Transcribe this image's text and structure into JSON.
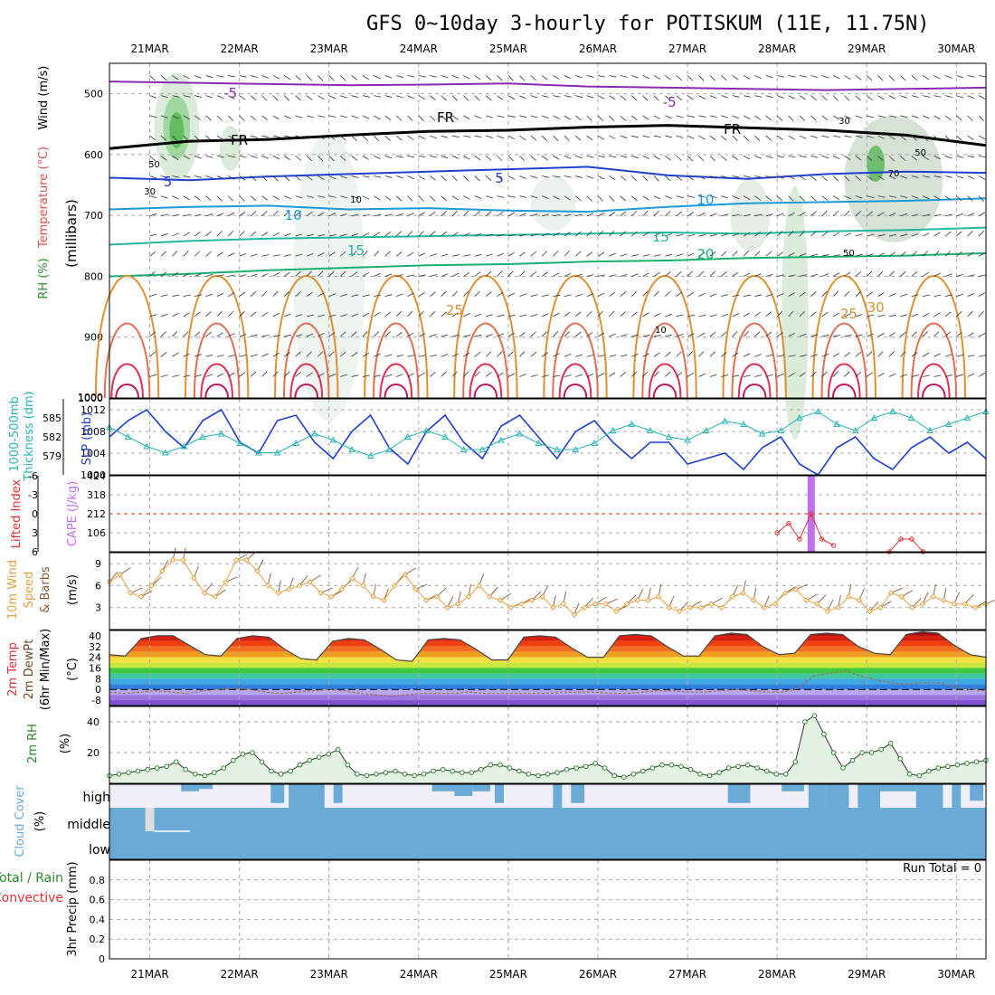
{
  "title": "GFS 0~10day 3-hourly for POTISKUM (11E, 11.75N)",
  "dates": [
    "21MAR",
    "22MAR",
    "23MAR",
    "24MAR",
    "25MAR",
    "26MAR",
    "27MAR",
    "28MAR",
    "29MAR",
    "30MAR"
  ],
  "run_total": "Run Total = 0",
  "colors": {
    "slp": "#1f3fd0",
    "thick": "#2ab5b5",
    "li": "#e03030",
    "cape": "#c070f0",
    "wind10": "#e8a040",
    "rh": "#2a8a2a",
    "cloud": "#6aaad6",
    "purple": "#8a2ab0",
    "fr": "#000000"
  },
  "chart_data": [
    {
      "type": "contour",
      "panel": "upper-air",
      "ylabel_parts": [
        "Wind (m/s)",
        "Temperature (°C)",
        "RH (%)",
        "(millibars)"
      ],
      "ylim": [
        1000,
        450
      ],
      "yticks": [
        500,
        600,
        700,
        800,
        900,
        1000
      ],
      "isotherm_labels": [
        "-5",
        "-5",
        "FR",
        "FR",
        "FR",
        "5",
        "5",
        "10",
        "10",
        "15",
        "15",
        "20",
        "25",
        "25",
        "30"
      ],
      "rh_labels": [
        "50",
        "30",
        "50",
        "70",
        "50",
        "10",
        "10",
        "30"
      ],
      "isotherms": [
        {
          "label": "-5",
          "p": [
            480,
            482,
            484,
            486,
            485,
            483,
            488,
            490,
            492,
            494,
            492,
            490
          ]
        },
        {
          "label": "FR",
          "p": [
            590,
            578,
            575,
            568,
            562,
            560,
            555,
            552,
            556,
            560,
            568,
            585
          ]
        },
        {
          "label": "5",
          "p": [
            638,
            642,
            636,
            632,
            628,
            624,
            620,
            634,
            640,
            632,
            628,
            630
          ]
        },
        {
          "label": "10",
          "p": [
            690,
            686,
            684,
            690,
            688,
            692,
            694,
            686,
            680,
            678,
            676,
            672
          ]
        },
        {
          "label": "15",
          "p": [
            748,
            742,
            738,
            736,
            734,
            732,
            730,
            728,
            730,
            726,
            724,
            720
          ]
        },
        {
          "label": "20",
          "p": [
            800,
            796,
            790,
            786,
            782,
            780,
            776,
            774,
            770,
            768,
            766,
            762
          ]
        }
      ]
    },
    {
      "type": "line",
      "panel": "slp-thickness",
      "ylabel_left": "1000-500mb Thickness (dm)",
      "ylabel_right": "SLP (mb)",
      "yticks_left": [
        "585",
        "582",
        "579"
      ],
      "yticks_right": [
        "1012",
        "1008",
        "1004",
        "1000"
      ],
      "ylim_slp": [
        1000,
        1014
      ],
      "series": [
        {
          "name": "SLP (mb)",
          "values": [
            1007,
            1010,
            1012,
            1008,
            1005,
            1010,
            1012,
            1006,
            1004,
            1010,
            1011,
            1006,
            1003,
            1008,
            1011,
            1005,
            1002,
            1008,
            1011,
            1006,
            1003,
            1009,
            1011,
            1007,
            1003,
            1008,
            1010,
            1006,
            1003,
            1006,
            1006,
            1002,
            1003,
            1004,
            1001,
            1005,
            1007,
            1002,
            1000,
            1005,
            1007,
            1003,
            1001,
            1005,
            1007,
            1004,
            1006,
            1003
          ]
        },
        {
          "name": "1000-500mb Thickness (dm)",
          "values": [
            583.5,
            582,
            580.5,
            579.5,
            580.5,
            582,
            582.5,
            581,
            579.5,
            579.5,
            581,
            582.5,
            581.5,
            580,
            579,
            580,
            582,
            583,
            582,
            580,
            580,
            581.5,
            582.5,
            581,
            580,
            580,
            581,
            583,
            584,
            583,
            582,
            581.5,
            583,
            584.5,
            584,
            582.5,
            583,
            585,
            586,
            584,
            583,
            585,
            586,
            585,
            583,
            584,
            585,
            586
          ]
        }
      ]
    },
    {
      "type": "line",
      "panel": "lifted-index-cape",
      "ylabel_left": "Lifted Index",
      "ylabel_right": "CAPE (J/kg)",
      "yticks_left": [
        "-6",
        "-3",
        "0",
        "3",
        "6"
      ],
      "yticks_right": [
        "424",
        "318",
        "212",
        "106"
      ],
      "ylim_li": [
        6,
        -6
      ],
      "series": [
        {
          "name": "Lifted Index",
          "points": [
            [
              28.0,
              3
            ],
            [
              28.13,
              1.5
            ],
            [
              28.25,
              4
            ],
            [
              28.38,
              0
            ],
            [
              28.5,
              4
            ],
            [
              28.63,
              5
            ],
            [
              29.25,
              6
            ],
            [
              29.38,
              4
            ],
            [
              29.5,
              4
            ],
            [
              29.63,
              6
            ]
          ]
        },
        {
          "name": "CAPE (J/kg)",
          "points": [
            [
              28.38,
              424
            ]
          ]
        }
      ]
    },
    {
      "type": "line",
      "panel": "wind10m",
      "ylabel": "10m Wind Speed & Barbs (m/s)",
      "yticks": [
        "9",
        "6",
        "3"
      ],
      "ylim": [
        0,
        10.5
      ],
      "series": [
        {
          "name": "10m Wind Speed",
          "values": [
            6.5,
            7.5,
            5,
            4.5,
            6,
            8,
            9.5,
            9.5,
            7,
            5,
            4.5,
            6.5,
            9.5,
            9.5,
            8,
            6,
            5,
            5.5,
            6,
            6.5,
            5,
            4.5,
            5.5,
            7,
            6,
            4.5,
            4,
            6,
            7.5,
            5.5,
            4,
            4.5,
            3,
            3.5,
            4.5,
            6,
            4.5,
            4,
            3,
            3.5,
            4,
            4.5,
            3,
            3.5,
            2,
            3,
            3.5,
            3.5,
            2.5,
            3.5,
            4,
            4,
            4.5,
            3,
            2.5,
            3,
            3,
            3.5,
            3,
            4.5,
            5,
            4,
            3,
            3.5,
            5,
            5.5,
            4,
            3.5,
            2.5,
            3,
            4.5,
            4,
            2.5,
            3,
            5,
            4.5,
            3,
            3.5,
            4.5,
            4,
            3.5,
            3.5,
            3,
            3.5
          ]
        }
      ]
    },
    {
      "type": "area",
      "panel": "temperature",
      "ylabel": "2m Temp 2m DewPt (6hr Min/Max) (°C)",
      "yticks": [
        "40",
        "32",
        "24",
        "16",
        "8",
        "0",
        "-8"
      ],
      "ylim": [
        -12,
        44
      ],
      "series": [
        {
          "name": "2m Temp",
          "values": [
            26,
            25,
            38,
            40,
            40,
            33,
            26,
            25,
            38,
            40,
            39,
            30,
            23,
            22,
            36,
            38,
            37,
            30,
            22,
            21,
            37,
            38,
            37,
            30,
            22,
            22,
            39,
            40,
            39,
            31,
            24,
            24,
            40,
            41,
            40,
            32,
            25,
            25,
            40,
            42,
            41,
            32,
            26,
            27,
            41,
            42,
            41,
            32,
            27,
            26,
            41,
            43,
            42,
            33,
            26,
            24
          ]
        },
        {
          "name": "2m DewPt",
          "values": [
            -2,
            -3,
            -2,
            -1,
            -2,
            -3,
            -1,
            0,
            1,
            0,
            -2,
            -3,
            -2,
            -1,
            0,
            -1,
            -3,
            -4,
            -5,
            -4,
            -3,
            -3,
            -3,
            -2,
            -3,
            -3,
            -3,
            -3,
            -3,
            -2,
            -2,
            -2,
            -3,
            -3,
            -2,
            -1,
            -1,
            -2,
            -2,
            -1,
            0,
            -1,
            -2,
            -2,
            1,
            10,
            12,
            14,
            10,
            7,
            5,
            4,
            5,
            5,
            2,
            0,
            -1
          ]
        }
      ]
    },
    {
      "type": "area",
      "panel": "rh2m",
      "ylabel": "2m RH (%)",
      "yticks": [
        "40",
        "20"
      ],
      "ylim": [
        0,
        50
      ],
      "series": [
        {
          "name": "2m RH",
          "values": [
            5,
            6,
            7,
            8,
            9,
            10,
            11,
            14,
            9,
            6,
            5,
            7,
            10,
            15,
            19,
            20,
            14,
            8,
            6,
            8,
            12,
            15,
            17,
            19,
            22,
            12,
            6,
            5,
            6,
            7,
            8,
            6,
            5,
            6,
            8,
            9,
            8,
            7,
            7,
            9,
            12,
            12,
            10,
            8,
            6,
            5,
            6,
            7,
            9,
            10,
            11,
            13,
            10,
            5,
            4,
            6,
            8,
            10,
            12,
            12,
            11,
            9,
            6,
            5,
            7,
            10,
            11,
            12,
            10,
            8,
            6,
            6,
            14,
            40,
            44,
            32,
            20,
            10,
            15,
            20,
            20,
            22,
            26,
            16,
            6,
            5,
            8,
            10,
            11,
            12,
            13,
            14,
            15
          ]
        }
      ]
    },
    {
      "type": "bar",
      "panel": "cloud-cover",
      "ylabel": "Cloud Cover (%)",
      "levels": [
        "high",
        "middle",
        "low"
      ],
      "series": [
        {
          "name": "high",
          "segments": [
            [
              21.35,
              21.55,
              0.3
            ],
            [
              21.55,
              21.7,
              0.2
            ],
            [
              22.35,
              22.5,
              0.8
            ],
            [
              22.55,
              22.95,
              1.0
            ],
            [
              23.05,
              23.15,
              0.8
            ],
            [
              24.15,
              24.4,
              0.3
            ],
            [
              24.4,
              24.6,
              0.5
            ],
            [
              24.6,
              24.8,
              0.3
            ],
            [
              24.85,
              24.95,
              0.8
            ],
            [
              25.5,
              25.6,
              1.0
            ],
            [
              25.7,
              25.85,
              0.8
            ],
            [
              27.45,
              27.7,
              0.8
            ],
            [
              28.05,
              28.3,
              0.3
            ],
            [
              28.35,
              28.55,
              1.0
            ],
            [
              28.55,
              28.8,
              1.0
            ],
            [
              28.9,
              29.15,
              1.0
            ],
            [
              29.15,
              29.55,
              0.3
            ],
            [
              29.55,
              29.85,
              1.0
            ],
            [
              29.95,
              30.05,
              1.0
            ],
            [
              30.15,
              30.3,
              0.7
            ]
          ]
        },
        {
          "name": "middle",
          "segments": [
            [
              20.95,
              21.05,
              0.3
            ]
          ]
        }
      ]
    },
    {
      "type": "bar",
      "panel": "precip",
      "ylabel_parts": [
        "Total / Rain",
        "Convective",
        "3hr Precip (mm)"
      ],
      "yticks": [
        "0.8",
        "0.6",
        "0.4",
        "0.2",
        "0"
      ],
      "ylim": [
        0,
        1
      ],
      "values": []
    }
  ]
}
